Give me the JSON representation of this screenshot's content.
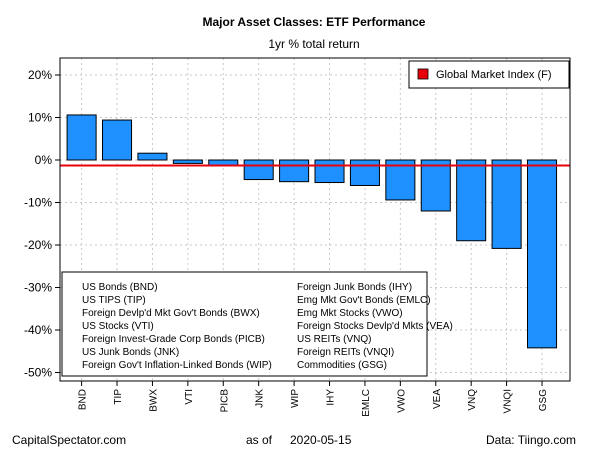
{
  "chart_data": {
    "type": "bar",
    "title": "Major Asset Classes: ETF Performance",
    "subtitle": "1yr % total return",
    "categories": [
      "BND",
      "TIP",
      "BWX",
      "VTI",
      "PICB",
      "JNK",
      "WIP",
      "IHY",
      "EMLC",
      "VWO",
      "VEA",
      "VNQ",
      "VNQI",
      "GSG"
    ],
    "values": [
      10.6,
      9.4,
      1.6,
      -0.8,
      -1.2,
      -4.6,
      -5.1,
      -5.3,
      -6.0,
      -9.4,
      -12.0,
      -19.0,
      -20.8,
      -44.2
    ],
    "reference_line": {
      "name": "Global Market Index (F)",
      "value": -1.3,
      "color": "#e8000b"
    },
    "ylim": [
      -52,
      24
    ],
    "yticks": [
      20,
      10,
      0,
      -10,
      -20,
      -30,
      -40,
      -50
    ],
    "ytick_labels": [
      "20%",
      "10%",
      "0%",
      "-10%",
      "-20%",
      "-30%",
      "-40%",
      "-50%"
    ],
    "grid": true,
    "bar_color": "#1e90ff",
    "legend_placement": "top-right",
    "key_left": [
      "US Bonds (BND)",
      "US TIPS (TIP)",
      "Foreign Devlp'd Mkt Gov't Bonds (BWX)",
      "US Stocks (VTI)",
      "Foreign Invest-Grade Corp Bonds (PICB)",
      "US Junk Bonds (JNK)",
      "Foreign Gov't Inflation-Linked Bonds (WIP)"
    ],
    "key_right": [
      "Foreign Junk Bonds (IHY)",
      "Emg Mkt Gov't Bonds (EMLC)",
      "Emg Mkt Stocks (VWO)",
      "Foreign Stocks Devlp'd Mkts (VEA)",
      "US REITs (VNQ)",
      "Foreign REITs (VNQI)",
      "Commodities (GSG)"
    ]
  },
  "footer": {
    "left": "CapitalSpectator.com",
    "center_prefix": "as of",
    "center_date": "2020-05-15",
    "right": "Data: Tiingo.com"
  }
}
